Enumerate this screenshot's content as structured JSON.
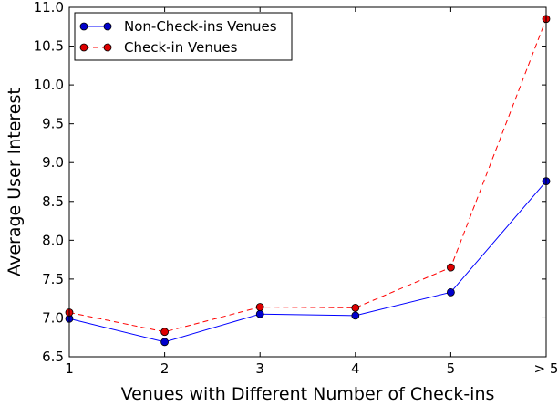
{
  "chart_data": {
    "type": "line",
    "title": "",
    "xlabel": "Venues with Different Number of Check-ins",
    "ylabel": "Average User Interest",
    "categories": [
      "1",
      "2",
      "3",
      "4",
      "5",
      "> 5"
    ],
    "ylim": [
      6.5,
      11.0
    ],
    "yticks": [
      "6.5",
      "7.0",
      "7.5",
      "8.0",
      "8.5",
      "9.0",
      "9.5",
      "10.0",
      "10.5",
      "11.0"
    ],
    "grid": false,
    "legend_position": "top-left",
    "series": [
      {
        "name": "Non-Check-ins Venues",
        "values": [
          6.99,
          6.69,
          7.05,
          7.03,
          7.33,
          8.76
        ],
        "color": "#0000ff",
        "marker_fill": "#0000cc",
        "line_style": "solid"
      },
      {
        "name": "Check-in Venues",
        "values": [
          7.07,
          6.82,
          7.14,
          7.13,
          7.65,
          10.85
        ],
        "color": "#ff0000",
        "marker_fill": "#dd0000",
        "line_style": "dashed"
      }
    ]
  }
}
